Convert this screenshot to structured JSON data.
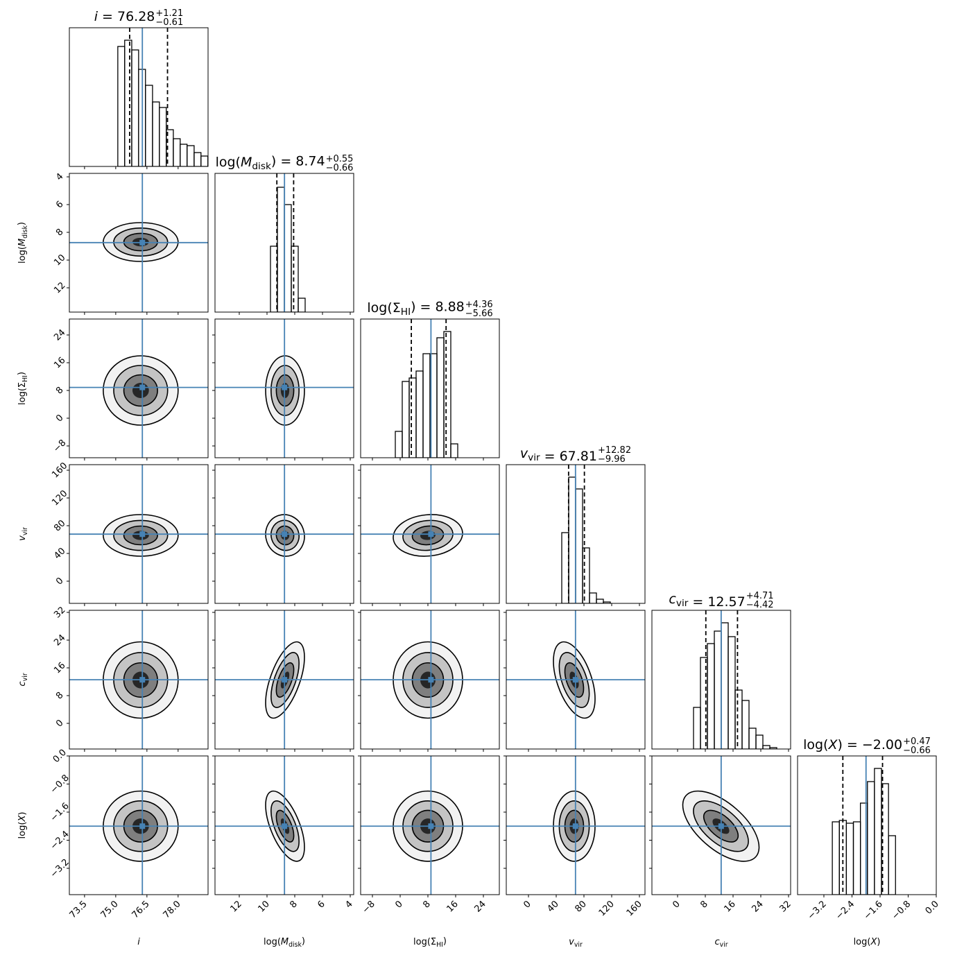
{
  "chart_data": {
    "type": "corner",
    "equals": "=",
    "truth_color": "#4682b4",
    "hist_color": "#000000",
    "hist_ylim": [
      0,
      200
    ],
    "params": [
      {
        "label": [
          {
            "text": "i",
            "italic": true
          }
        ],
        "median": 76.28,
        "err_plus": {
          "value": 1.21,
          "label": "+1.21"
        },
        "err_minus": {
          "value": 0.61,
          "label": "−0.61"
        },
        "lim": [
          72.77,
          79.44
        ],
        "ticks": [
          73.5,
          {
            "value": 75,
            "label": "75.0"
          },
          76.5,
          {
            "value": 78,
            "label": "78.0"
          }
        ],
        "mode": 76.2,
        "spread": 1.8,
        "bins": [
          75.1,
          75.43,
          75.77,
          76.1,
          76.43,
          76.77,
          77.1,
          77.43,
          77.77,
          78.1,
          78.43,
          78.77,
          79.1,
          79.43
        ],
        "counts": [
          173,
          182,
          168,
          140,
          117,
          93,
          85,
          53,
          40,
          32,
          30,
          20,
          15
        ]
      },
      {
        "label": [
          {
            "text": "log("
          },
          {
            "text": "M",
            "italic": true
          },
          {
            "text": "disk",
            "sub": true
          },
          {
            "text": ")"
          }
        ],
        "median": 8.74,
        "err_plus": {
          "value": 0.55,
          "label": "+0.55"
        },
        "err_minus": {
          "value": 0.66,
          "label": "−0.66"
        },
        "lim": [
          13.75,
          3.75
        ],
        "ticks": [
          12,
          10,
          8,
          6,
          4
        ],
        "mode": 8.7,
        "spread": 1.4,
        "bins": [
          7.25,
          7.75,
          8.25,
          8.75,
          9.25,
          9.75
        ],
        "counts": [
          20,
          95,
          155,
          180,
          95
        ]
      },
      {
        "label": [
          {
            "text": "log("
          },
          {
            "text": "Σ"
          },
          {
            "text": "HI",
            "sub": true
          },
          {
            "text": ")"
          }
        ],
        "median": 8.88,
        "err_plus": {
          "value": 4.36,
          "label": "+4.36"
        },
        "err_minus": {
          "value": 5.66,
          "label": "−5.66"
        },
        "lim": [
          -11.4,
          28.6
        ],
        "ticks": [
          {
            "value": -8,
            "label": "−8"
          },
          0,
          8,
          16,
          24
        ],
        "mode": 8,
        "spread": 10,
        "bins": [
          -1.4,
          0.6,
          2.6,
          4.6,
          6.6,
          8.6,
          10.6,
          12.6,
          14.6,
          16.6
        ],
        "counts": [
          38,
          110,
          115,
          125,
          150,
          150,
          173,
          182,
          20
        ]
      },
      {
        "label": [
          {
            "text": "v",
            "italic": true
          },
          {
            "text": "vir",
            "sub": true
          }
        ],
        "median": 67.81,
        "err_plus": {
          "value": 12.82,
          "label": "+12.82"
        },
        "err_minus": {
          "value": 9.96,
          "label": "−9.96"
        },
        "lim": [
          -32,
          168
        ],
        "ticks": [
          0,
          40,
          80,
          120,
          160
        ],
        "mode": 66,
        "spread": 30,
        "bins": [
          48,
          58,
          68,
          78,
          88,
          98,
          108,
          118
        ],
        "counts": [
          102,
          182,
          165,
          80,
          15,
          6,
          2
        ]
      },
      {
        "label": [
          {
            "text": "c",
            "italic": true
          },
          {
            "text": "vir",
            "sub": true
          }
        ],
        "median": 12.57,
        "err_plus": {
          "value": 4.71,
          "label": "+4.71"
        },
        "err_minus": {
          "value": 4.42,
          "label": "−4.42"
        },
        "lim": [
          -7.4,
          32.6
        ],
        "ticks": [
          0,
          8,
          16,
          24,
          32
        ],
        "mode": 12.5,
        "spread": 11,
        "bins": [
          4.6,
          6.6,
          8.6,
          10.6,
          12.6,
          14.6,
          16.6,
          18.6,
          20.6,
          22.6,
          24.6,
          26.6,
          28.6
        ],
        "counts": [
          60,
          132,
          152,
          170,
          182,
          162,
          85,
          70,
          30,
          20,
          5,
          2
        ]
      },
      {
        "label": [
          {
            "text": "log("
          },
          {
            "text": "X",
            "italic": true
          },
          {
            "text": ")"
          }
        ],
        "median": {
          "value": -2,
          "label": "−2.00"
        },
        "err_plus": {
          "value": 0.47,
          "label": "+0.47"
        },
        "err_minus": {
          "value": 0.66,
          "label": "−0.66"
        },
        "lim": [
          -3.95,
          0
        ],
        "ticks": [
          {
            "value": -3.2,
            "label": "−3.2"
          },
          {
            "value": -2.4,
            "label": "−2.4"
          },
          {
            "value": -1.6,
            "label": "−1.6"
          },
          {
            "value": -0.8,
            "label": "−0.8"
          },
          {
            "value": 0,
            "label": "0.0"
          }
        ],
        "mode": -2.0,
        "spread": 1.0,
        "bins": [
          -2.96,
          -2.76,
          -2.56,
          -2.36,
          -2.16,
          -1.96,
          -1.76,
          -1.56,
          -1.36,
          -1.16
        ],
        "counts": [
          105,
          107,
          103,
          105,
          132,
          163,
          182,
          160,
          85
        ]
      }
    ],
    "corr": [
      0,
      0,
      0,
      0,
      0.05,
      0.1,
      0,
      -0.6,
      0,
      -0.5,
      0,
      0.6,
      0,
      0,
      -0.6
    ]
  }
}
